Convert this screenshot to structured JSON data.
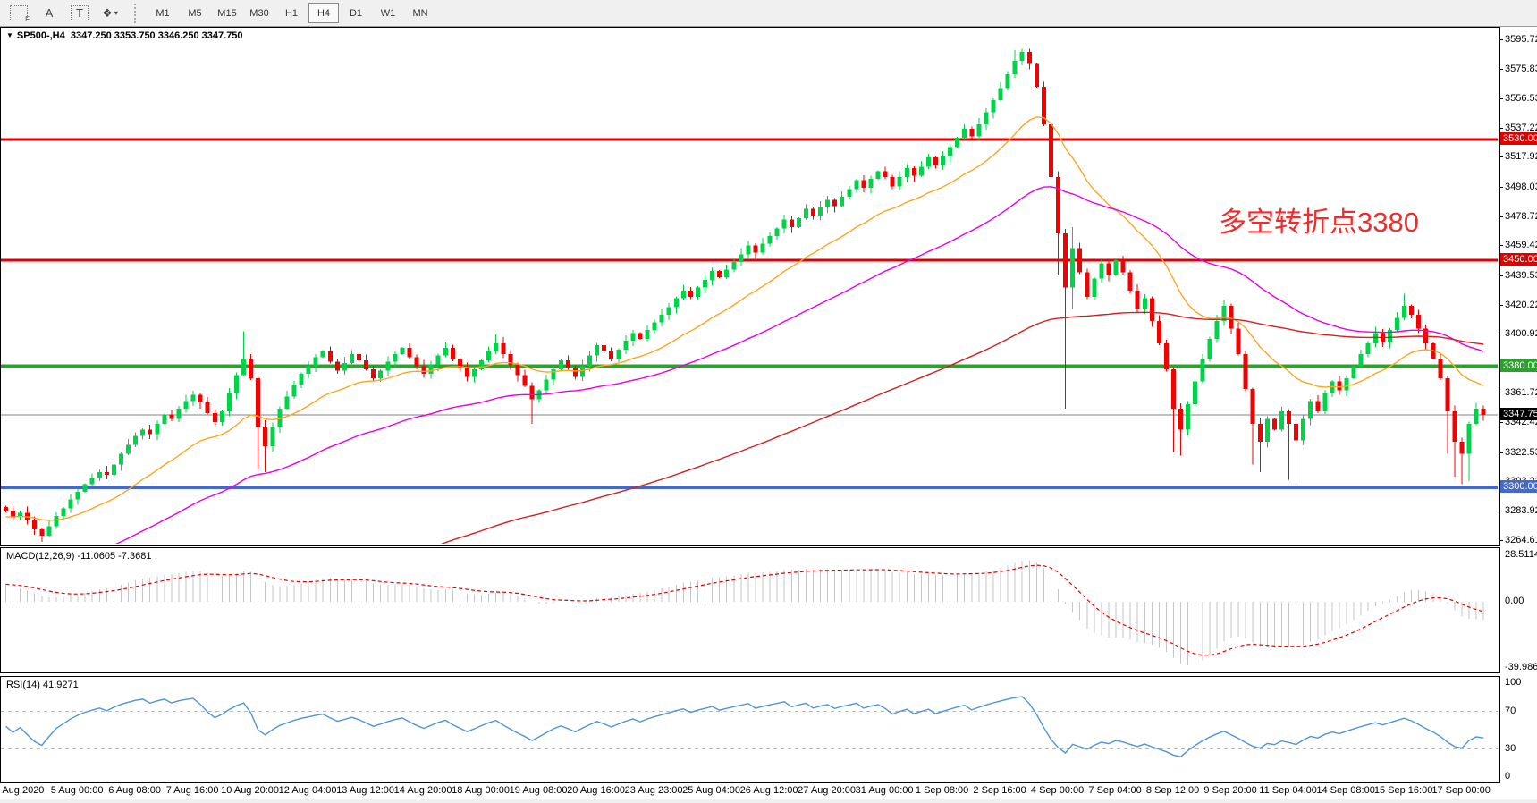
{
  "toolbar": {
    "icons": {
      "f_glyph": "F",
      "text_label_glyph": "A",
      "text_box_glyph": "T",
      "shapes_glyph": "❖",
      "caret_glyph": "▾"
    },
    "timeframes": [
      "M1",
      "M5",
      "M15",
      "M30",
      "H1",
      "H4",
      "D1",
      "W1",
      "MN"
    ],
    "active_timeframe": "H4"
  },
  "chart": {
    "symbol_arrow": "▼",
    "symbol": "SP500-,H4",
    "ohlc": "3347.250 3353.750 3346.250 3347.750",
    "last_price": 3347.75,
    "last_price_label": "3347.750"
  },
  "annotation": {
    "text": "多空转折点3380",
    "color": "#f22b2b"
  },
  "levels": [
    {
      "name": "resistance-3530",
      "price": 3530.0,
      "label": "3530.000",
      "color": "#e00000",
      "width": 3
    },
    {
      "name": "resistance-3450",
      "price": 3450.0,
      "label": "3450.000",
      "color": "#e00000",
      "width": 3
    },
    {
      "name": "pivot-3380",
      "price": 3380.0,
      "label": "3380.000",
      "color": "#2da12d",
      "width": 4
    },
    {
      "name": "support-3300",
      "price": 3300.0,
      "label": "3300.000",
      "color": "#4169d0",
      "width": 4
    }
  ],
  "price_axis": {
    "ticks": [
      "3595.725",
      "3575.835",
      "3556.530",
      "3537.225",
      "3517.920",
      "3498.030",
      "3478.725",
      "3459.420",
      "3439.530",
      "3420.225",
      "3400.920",
      "3361.725",
      "3342.420",
      "3322.530",
      "3303.225",
      "3283.920",
      "3264.615"
    ]
  },
  "macd": {
    "label": "MACD(12,26,9) -11.0605 -7.3681",
    "axis": [
      {
        "text": "28.5114",
        "value": 28.5114
      },
      {
        "text": "0.00",
        "value": 0
      },
      {
        "text": "-39.9869",
        "value": -39.9869
      }
    ]
  },
  "rsi": {
    "label": "RSI(14) 41.9271",
    "axis": [
      {
        "text": "100",
        "value": 100
      },
      {
        "text": "70",
        "value": 70
      },
      {
        "text": "30",
        "value": 30
      },
      {
        "text": "0",
        "value": 0
      }
    ],
    "levels": [
      70,
      30
    ]
  },
  "time_axis": {
    "labels": [
      "3 Aug 2020",
      "5 Aug 00:00",
      "6 Aug 08:00",
      "7 Aug 16:00",
      "10 Aug 20:00",
      "12 Aug 04:00",
      "13 Aug 12:00",
      "14 Aug 20:00",
      "18 Aug 00:00",
      "19 Aug 08:00",
      "20 Aug 16:00",
      "23 Aug 23:00",
      "25 Aug 04:00",
      "26 Aug 12:00",
      "27 Aug 20:00",
      "31 Aug 00:00",
      "1 Sep 08:00",
      "2 Sep 16:00",
      "4 Sep 00:00",
      "7 Sep 04:00",
      "8 Sep 12:00",
      "9 Sep 20:00",
      "11 Sep 04:00",
      "14 Sep 08:00",
      "15 Sep 16:00",
      "17 Sep 00:00"
    ]
  },
  "colors": {
    "bull": "#00d34a",
    "bear": "#f30000",
    "ma_fast": "#ffa520",
    "ma_mid": "#e800e8",
    "ma_slow": "#d42020",
    "macd_hist": "#c6c6c6",
    "macd_signal": "#e00000",
    "rsi_line": "#4f95d6",
    "rsi_level": "#bbbbbb",
    "last_line": "#808080",
    "badge_last": "#000000"
  },
  "chart_data": {
    "type": "candlestick",
    "symbol": "SP500",
    "timeframe": "H4",
    "first_open": 3287,
    "closes": [
      3284,
      3280,
      3283,
      3278,
      3272,
      3268,
      3274,
      3281,
      3286,
      3292,
      3297,
      3302,
      3306,
      3310,
      3308,
      3315,
      3322,
      3328,
      3334,
      3338,
      3335,
      3342,
      3348,
      3345,
      3352,
      3357,
      3361,
      3356,
      3349,
      3343,
      3350,
      3362,
      3374,
      3385,
      3372,
      3340,
      3327,
      3340,
      3352,
      3360,
      3368,
      3375,
      3380,
      3386,
      3390,
      3383,
      3377,
      3382,
      3388,
      3384,
      3378,
      3372,
      3377,
      3383,
      3388,
      3392,
      3386,
      3380,
      3375,
      3381,
      3387,
      3392,
      3385,
      3379,
      3373,
      3378,
      3384,
      3390,
      3395,
      3388,
      3381,
      3374,
      3367,
      3358,
      3364,
      3371,
      3378,
      3384,
      3379,
      3373,
      3380,
      3387,
      3394,
      3390,
      3385,
      3391,
      3397,
      3402,
      3398,
      3404,
      3409,
      3414,
      3419,
      3425,
      3430,
      3426,
      3432,
      3437,
      3443,
      3439,
      3444,
      3449,
      3454,
      3460,
      3455,
      3461,
      3466,
      3471,
      3477,
      3472,
      3478,
      3484,
      3479,
      3485,
      3490,
      3486,
      3492,
      3497,
      3503,
      3498,
      3504,
      3509,
      3505,
      3499,
      3505,
      3511,
      3506,
      3512,
      3518,
      3513,
      3519,
      3525,
      3531,
      3537,
      3532,
      3540,
      3548,
      3556,
      3564,
      3573,
      3582,
      3588,
      3580,
      3565,
      3540,
      3505,
      3468,
      3432,
      3458,
      3442,
      3426,
      3438,
      3448,
      3440,
      3450,
      3442,
      3430,
      3418,
      3425,
      3410,
      3395,
      3378,
      3352,
      3338,
      3355,
      3370,
      3385,
      3398,
      3410,
      3420,
      3405,
      3388,
      3365,
      3342,
      3330,
      3345,
      3338,
      3350,
      3342,
      3331,
      3345,
      3357,
      3350,
      3362,
      3370,
      3364,
      3372,
      3380,
      3388,
      3395,
      3402,
      3396,
      3404,
      3412,
      3420,
      3414,
      3405,
      3395,
      3385,
      3372,
      3350,
      3330,
      3322,
      3342,
      3352,
      3347.75
    ],
    "wick_overrides": {
      "33": [
        3403,
        null
      ],
      "35": [
        null,
        3312
      ],
      "36": [
        null,
        3310
      ],
      "68": [
        3401,
        null
      ],
      "73": [
        null,
        3342
      ],
      "140": [
        3589,
        null
      ],
      "141": [
        3590,
        null
      ],
      "145": [
        null,
        3490
      ],
      "146": [
        null,
        3440
      ],
      "147": [
        null,
        3352
      ],
      "148": [
        3472,
        3418
      ],
      "162": [
        null,
        3323
      ],
      "163": [
        null,
        3321
      ],
      "169": [
        3424,
        null
      ],
      "173": [
        null,
        3315
      ],
      "174": [
        null,
        3310
      ],
      "178": [
        null,
        3305
      ],
      "179": [
        null,
        3303
      ],
      "194": [
        3428,
        null
      ],
      "200": [
        null,
        3322
      ],
      "201": [
        null,
        3307
      ],
      "202": [
        null,
        3302
      ],
      "203": [
        null,
        3304
      ],
      "205": [
        3354,
        3344
      ]
    },
    "indicators": {
      "ma_fast_period": 20,
      "ma_mid_period": 55,
      "ma_slow_period": 144,
      "macd": [
        12,
        26,
        9
      ],
      "rsi_period": 14
    }
  }
}
